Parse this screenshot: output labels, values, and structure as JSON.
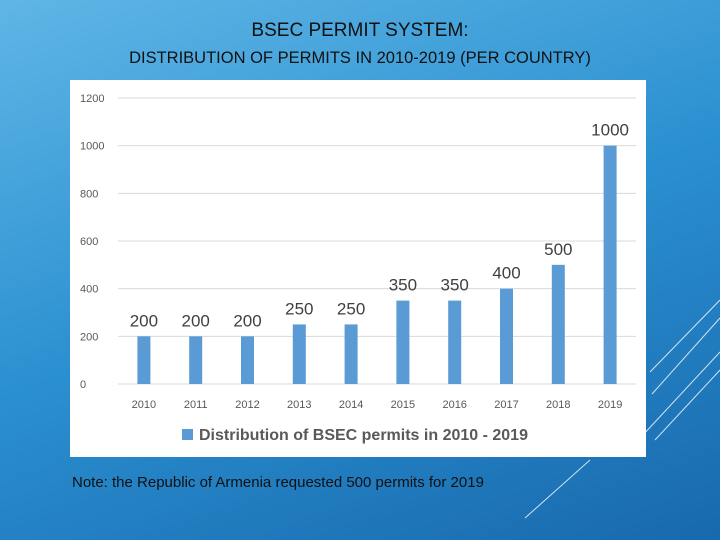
{
  "slide": {
    "title_line1": "BSEC PERMIT SYSTEM:",
    "title_line2": "DISTRIBUTION OF PERMITS IN 2010-2019 (PER COUNTRY)",
    "note": "Note: the Republic of Armenia requested 500 permits for 2019"
  },
  "colors": {
    "bar": "#5b9bd5",
    "grid": "#d9d9d9",
    "tick_text": "#595959",
    "label_text": "#404040"
  },
  "chart_data": {
    "type": "bar",
    "categories": [
      "2010",
      "2011",
      "2012",
      "2013",
      "2014",
      "2015",
      "2016",
      "2017",
      "2018",
      "2019"
    ],
    "values": [
      200,
      200,
      200,
      250,
      250,
      350,
      350,
      400,
      500,
      1000
    ],
    "data_labels": [
      "200",
      "200",
      "200",
      "250",
      "250",
      "350",
      "350",
      "400",
      "500",
      "1000"
    ],
    "series": [
      {
        "name": "Distribution of BSEC permits in 2010 - 2019",
        "values": [
          200,
          200,
          200,
          250,
          250,
          350,
          350,
          400,
          500,
          1000
        ]
      }
    ],
    "yticks": [
      "0",
      "200",
      "400",
      "600",
      "800",
      "1000",
      "1200"
    ],
    "ylim": [
      0,
      1200
    ],
    "grid": true,
    "legend_position": "bottom"
  }
}
